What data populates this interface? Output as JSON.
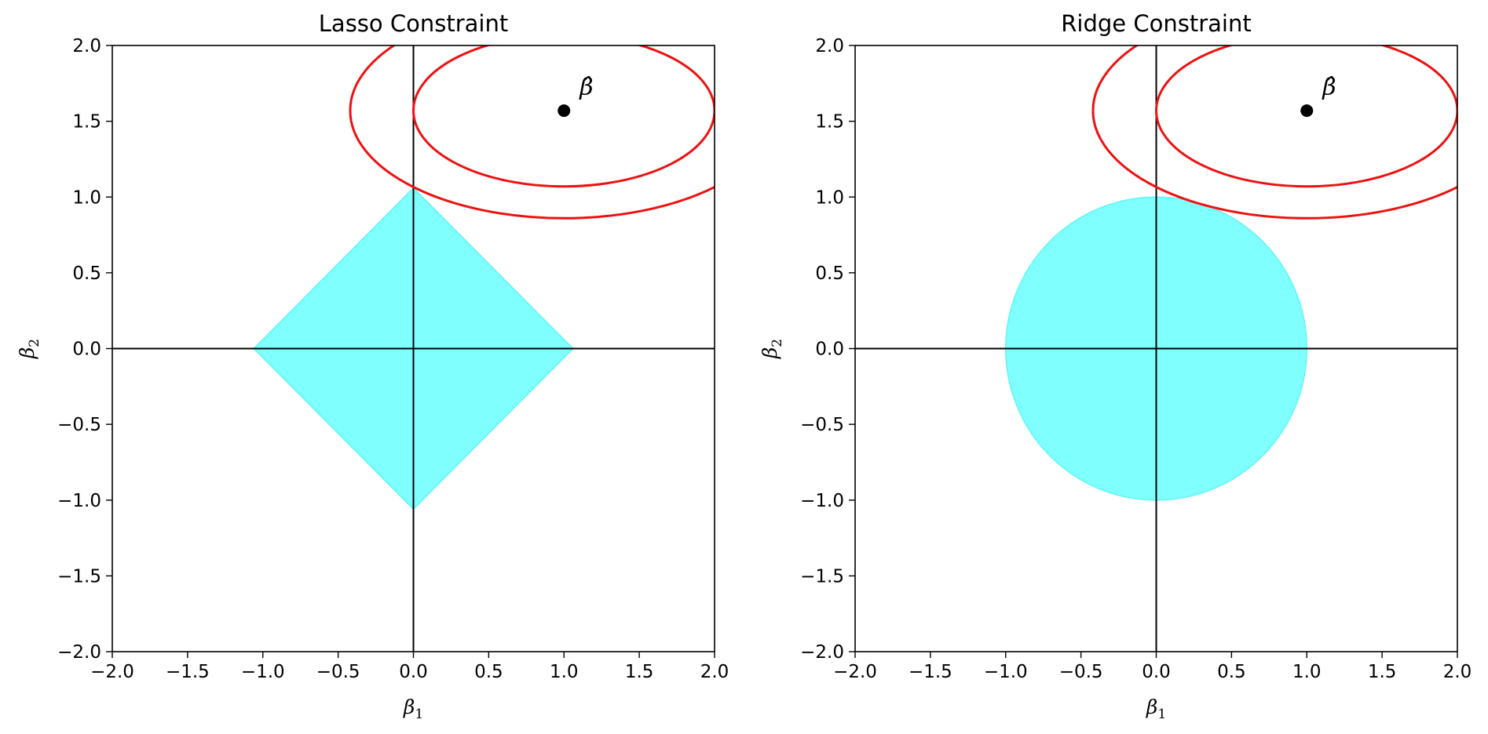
{
  "chart_data": [
    {
      "type": "scatter",
      "title": "Lasso Constraint",
      "xlabel": "β",
      "xlabel_sub": "1",
      "ylabel": "β",
      "ylabel_sub": "2",
      "xlim": [
        -2.0,
        2.0
      ],
      "ylim": [
        -2.0,
        2.0
      ],
      "xticks": [
        "−2.0",
        "−1.5",
        "−1.0",
        "−0.5",
        "0.0",
        "0.5",
        "1.0",
        "1.5",
        "2.0"
      ],
      "yticks": [
        "2.0",
        "1.5",
        "1.0",
        "0.5",
        "0.0",
        "−0.5",
        "−1.0",
        "−1.5",
        "−2.0"
      ],
      "xtick_values": [
        -2.0,
        -1.5,
        -1.0,
        -0.5,
        0.0,
        0.5,
        1.0,
        1.5,
        2.0
      ],
      "ytick_values": [
        2.0,
        1.5,
        1.0,
        0.5,
        0.0,
        -0.5,
        -1.0,
        -1.5,
        -2.0
      ],
      "constraint_region": {
        "shape": "diamond",
        "radius": 1.06,
        "color": "#80ffff"
      },
      "estimate": {
        "x": 1.0,
        "y": 1.57,
        "label": "β̂"
      },
      "contours": [
        {
          "cx": 1.0,
          "cy": 1.57,
          "rx": 1.0,
          "ry": 0.5
        },
        {
          "cx": 1.0,
          "cy": 1.57,
          "rx": 1.42,
          "ry": 0.71
        }
      ],
      "contour_color": "#ee1111",
      "grid": false
    },
    {
      "type": "scatter",
      "title": "Ridge Constraint",
      "xlabel": "β",
      "xlabel_sub": "1",
      "ylabel": "β",
      "ylabel_sub": "2",
      "xlim": [
        -2.0,
        2.0
      ],
      "ylim": [
        -2.0,
        2.0
      ],
      "xticks": [
        "−2.0",
        "−1.5",
        "−1.0",
        "−0.5",
        "0.0",
        "0.5",
        "1.0",
        "1.5",
        "2.0"
      ],
      "yticks": [
        "2.0",
        "1.5",
        "1.0",
        "0.5",
        "0.0",
        "−0.5",
        "−1.0",
        "−1.5",
        "−2.0"
      ],
      "xtick_values": [
        -2.0,
        -1.5,
        -1.0,
        -0.5,
        0.0,
        0.5,
        1.0,
        1.5,
        2.0
      ],
      "ytick_values": [
        2.0,
        1.5,
        1.0,
        0.5,
        0.0,
        -0.5,
        -1.0,
        -1.5,
        -2.0
      ],
      "constraint_region": {
        "shape": "circle",
        "radius": 1.0,
        "color": "#80ffff"
      },
      "estimate": {
        "x": 1.0,
        "y": 1.57,
        "label": "β̂"
      },
      "contours": [
        {
          "cx": 1.0,
          "cy": 1.57,
          "rx": 1.0,
          "ry": 0.5
        },
        {
          "cx": 1.0,
          "cy": 1.57,
          "rx": 1.42,
          "ry": 0.71
        }
      ],
      "contour_color": "#ee1111",
      "grid": false
    }
  ]
}
